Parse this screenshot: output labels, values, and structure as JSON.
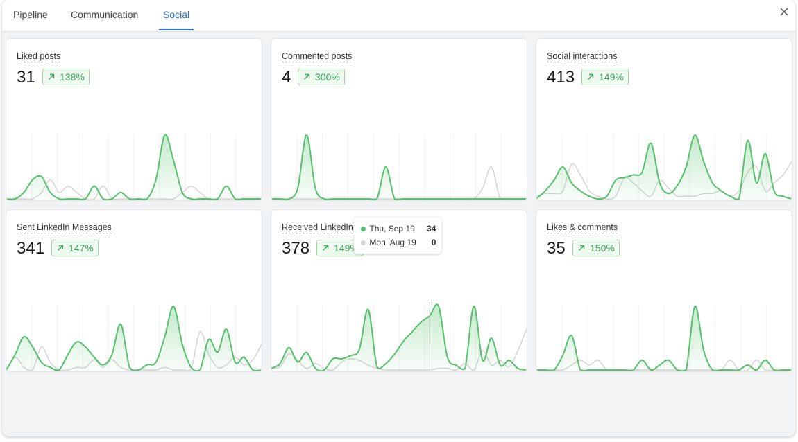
{
  "tabs": [
    "Pipeline",
    "Communication",
    "Social"
  ],
  "cards": [
    {
      "title": "Liked posts",
      "value": 31,
      "change": "138%",
      "chart": {
        "type": "area",
        "series": [
          {
            "color": "#55c16a",
            "values": [
              0,
              0,
              1,
              3,
              3.5,
              1,
              0,
              0,
              0,
              0,
              2,
              0,
              0,
              1,
              0,
              0,
              0,
              3,
              10,
              6,
              1,
              0,
              0,
              0,
              0,
              2,
              0,
              0,
              0,
              0
            ]
          },
          {
            "color": "#d4d4d4",
            "values": [
              0,
              0,
              0,
              0,
              1,
              3,
              1,
              2,
              1,
              0,
              0,
              2,
              0,
              0,
              0,
              0,
              0,
              0,
              0,
              0,
              1,
              2,
              1,
              0,
              0,
              0,
              0,
              0,
              0,
              0
            ]
          }
        ]
      }
    },
    {
      "title": "Commented posts",
      "value": 4,
      "change": "300%",
      "chart": {
        "type": "area",
        "series": [
          {
            "color": "#55c16a",
            "values": [
              0,
              0,
              0,
              0.5,
              3,
              0.5,
              0,
              0,
              0,
              0,
              0,
              0,
              0,
              1.5,
              0,
              0,
              0,
              0,
              0,
              0,
              0,
              0,
              0,
              0,
              0,
              0,
              0,
              0,
              0,
              0
            ]
          },
          {
            "color": "#d4d4d4",
            "values": [
              0,
              0,
              0,
              0,
              0,
              0,
              0,
              0,
              0,
              0,
              0,
              0,
              0,
              0,
              0,
              0,
              0,
              0,
              0,
              0,
              0,
              0,
              0,
              0,
              0.5,
              1.5,
              0,
              0,
              0,
              0
            ]
          }
        ]
      }
    },
    {
      "title": "Social interactions",
      "value": 413,
      "change": "149%",
      "chart": {
        "type": "area",
        "series": [
          {
            "color": "#55c16a",
            "values": [
              0,
              3,
              7,
              12,
              6,
              3,
              1,
              0,
              1,
              7,
              8,
              9,
              10,
              21,
              6,
              2,
              5,
              12,
              24,
              14,
              6,
              3,
              1,
              0,
              22,
              6,
              17,
              3,
              1,
              0
            ]
          },
          {
            "color": "#d4d4d4",
            "values": [
              1,
              2,
              2,
              3,
              13,
              9,
              3,
              1,
              0,
              1,
              8,
              6,
              3,
              1,
              7,
              4,
              1,
              1,
              1,
              2,
              2,
              3,
              1,
              3,
              10,
              12,
              3,
              6,
              9,
              14
            ]
          }
        ]
      }
    },
    {
      "title": "Sent LinkedIn Messages",
      "value": 341,
      "change": "147%",
      "chart": {
        "type": "area",
        "series": [
          {
            "color": "#55c16a",
            "values": [
              0,
              6,
              13,
              9,
              3,
              1,
              0,
              6,
              11,
              9,
              5,
              2,
              6,
              18,
              1,
              0,
              2,
              3,
              13,
              25,
              10,
              1,
              0,
              12,
              7,
              16,
              3,
              5,
              0,
              0
            ]
          },
          {
            "color": "#d4d4d4",
            "values": [
              0,
              5,
              1,
              0,
              9,
              3,
              0,
              0,
              1,
              1,
              4,
              1,
              4,
              1,
              0,
              0,
              0,
              0,
              1,
              0,
              0,
              0,
              15,
              6,
              1,
              2,
              5,
              2,
              4,
              10
            ]
          }
        ]
      }
    },
    {
      "title": "Received LinkedIn Messages",
      "value": 378,
      "change": "149%",
      "chart": {
        "type": "area",
        "series": [
          {
            "color": "#55c16a",
            "values": [
              1,
              4,
              14,
              5,
              11,
              1,
              0,
              7,
              7,
              9,
              13,
              38,
              2,
              4,
              10,
              18,
              24,
              30,
              34,
              40,
              8,
              3,
              1,
              40,
              6,
              20,
              3,
              6,
              1,
              0
            ]
          },
          {
            "color": "#d4d4d4",
            "values": [
              1,
              2,
              10,
              6,
              1,
              4,
              1,
              0,
              5,
              7,
              6,
              3,
              1,
              0,
              0,
              0,
              0,
              0,
              0,
              1,
              1,
              0,
              4,
              0,
              12,
              3,
              6,
              2,
              12,
              26
            ]
          }
        ]
      },
      "tooltip": [
        "Thu, Sep 19",
        "Mon, Aug 19"
      ]
    },
    {
      "title": "Likes & comments",
      "value": 35,
      "change": "150%",
      "chart": {
        "type": "area",
        "series": [
          {
            "color": "#55c16a",
            "values": [
              0,
              0,
              0,
              3,
              7,
              0,
              0,
              0,
              0,
              0,
              0,
              0,
              2,
              0,
              1,
              2,
              0,
              0,
              13,
              4,
              0,
              0,
              0,
              0,
              1,
              0,
              2,
              0,
              0,
              0
            ]
          },
          {
            "color": "#d4d4d4",
            "values": [
              0,
              0,
              0,
              0,
              1,
              2,
              1,
              2,
              0,
              0,
              0,
              0,
              0,
              0,
              0,
              0,
              0,
              0,
              0,
              0,
              0,
              0,
              2,
              0,
              0,
              2,
              0,
              0,
              0,
              0
            ]
          }
        ]
      }
    }
  ]
}
